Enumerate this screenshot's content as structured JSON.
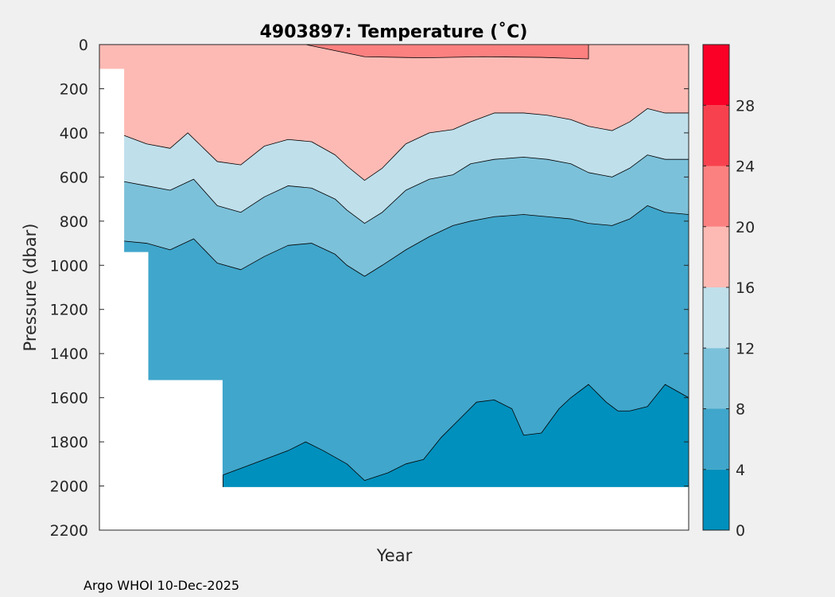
{
  "chart_data": {
    "type": "contour",
    "title": "4903897:  Temperature (˚C)",
    "xlabel": "Year",
    "ylabel": "Pressure (dbar)",
    "ylim": [
      0,
      2200
    ],
    "y_reversed": true,
    "yticks": [
      0,
      200,
      400,
      600,
      800,
      1000,
      1200,
      1400,
      1600,
      1800,
      2000,
      2200
    ],
    "x_tick_labels": [],
    "colorbar": {
      "range": [
        0,
        32
      ],
      "ticks": [
        0,
        4,
        8,
        12,
        16,
        20,
        24,
        28
      ],
      "bands": [
        {
          "from": 0,
          "to": 4,
          "color": "#0090bd"
        },
        {
          "from": 4,
          "to": 8,
          "color": "#40a6cb"
        },
        {
          "from": 8,
          "to": 12,
          "color": "#7cc1da"
        },
        {
          "from": 12,
          "to": 16,
          "color": "#bfdfeb"
        },
        {
          "from": 16,
          "to": 20,
          "color": "#fdbab4"
        },
        {
          "from": 20,
          "to": 24,
          "color": "#fb8180"
        },
        {
          "from": 24,
          "to": 28,
          "color": "#f8414e"
        },
        {
          "from": 28,
          "to": 32,
          "color": "#fa0027"
        }
      ]
    },
    "isotherm_boundaries": [
      {
        "temperature": 20,
        "fill": "#fb8180",
        "x": [
          0.24,
          0.35,
          0.45,
          0.55,
          0.65,
          0.75,
          0.83
        ],
        "pressure": [
          0,
          0,
          55,
          60,
          55,
          58,
          65
        ]
      },
      {
        "temperature": 16,
        "fill": "#bfdfeb",
        "x": [
          0.04,
          0.08,
          0.12,
          0.15,
          0.2,
          0.24,
          0.28,
          0.32,
          0.36,
          0.4,
          0.42,
          0.45,
          0.48,
          0.52,
          0.56,
          0.6,
          0.63,
          0.67,
          0.72,
          0.76,
          0.8,
          0.83,
          0.87,
          0.9,
          0.93,
          0.96,
          1.0
        ],
        "pressure": [
          410,
          450,
          470,
          400,
          530,
          545,
          460,
          430,
          440,
          500,
          550,
          615,
          560,
          450,
          400,
          385,
          350,
          310,
          310,
          320,
          340,
          370,
          390,
          350,
          290,
          310,
          310
        ]
      },
      {
        "temperature": 12,
        "fill": "#7cc1da",
        "x": [
          0.04,
          0.08,
          0.12,
          0.16,
          0.2,
          0.24,
          0.28,
          0.32,
          0.36,
          0.4,
          0.42,
          0.45,
          0.48,
          0.52,
          0.56,
          0.6,
          0.63,
          0.67,
          0.72,
          0.76,
          0.8,
          0.83,
          0.87,
          0.9,
          0.93,
          0.96,
          1.0
        ],
        "pressure": [
          620,
          640,
          660,
          610,
          730,
          760,
          690,
          640,
          650,
          700,
          750,
          810,
          760,
          660,
          610,
          590,
          540,
          520,
          510,
          520,
          540,
          580,
          600,
          560,
          500,
          520,
          520
        ]
      },
      {
        "temperature": 8,
        "fill": "#40a6cb",
        "x": [
          0.04,
          0.08,
          0.12,
          0.16,
          0.2,
          0.24,
          0.28,
          0.32,
          0.36,
          0.4,
          0.42,
          0.45,
          0.48,
          0.52,
          0.56,
          0.6,
          0.63,
          0.67,
          0.72,
          0.76,
          0.8,
          0.83,
          0.87,
          0.9,
          0.93,
          0.96,
          1.0
        ],
        "pressure": [
          890,
          900,
          930,
          880,
          990,
          1020,
          960,
          910,
          900,
          950,
          1000,
          1050,
          1000,
          930,
          870,
          820,
          800,
          780,
          770,
          780,
          790,
          810,
          820,
          790,
          730,
          760,
          770
        ]
      },
      {
        "temperature": 4,
        "fill": "#0090bd",
        "x": [
          0.21,
          0.24,
          0.28,
          0.32,
          0.35,
          0.38,
          0.42,
          0.45,
          0.49,
          0.52,
          0.55,
          0.58,
          0.61,
          0.64,
          0.67,
          0.7,
          0.72,
          0.75,
          0.78,
          0.8,
          0.83,
          0.86,
          0.88,
          0.9,
          0.93,
          0.96,
          1.0
        ],
        "pressure": [
          1950,
          1920,
          1880,
          1840,
          1800,
          1840,
          1900,
          1975,
          1940,
          1900,
          1880,
          1780,
          1700,
          1620,
          1610,
          1650,
          1770,
          1760,
          1650,
          1600,
          1540,
          1620,
          1660,
          1660,
          1640,
          1540,
          1600
        ]
      }
    ],
    "annotation": "Argo WHOI 10-Dec-2025"
  }
}
